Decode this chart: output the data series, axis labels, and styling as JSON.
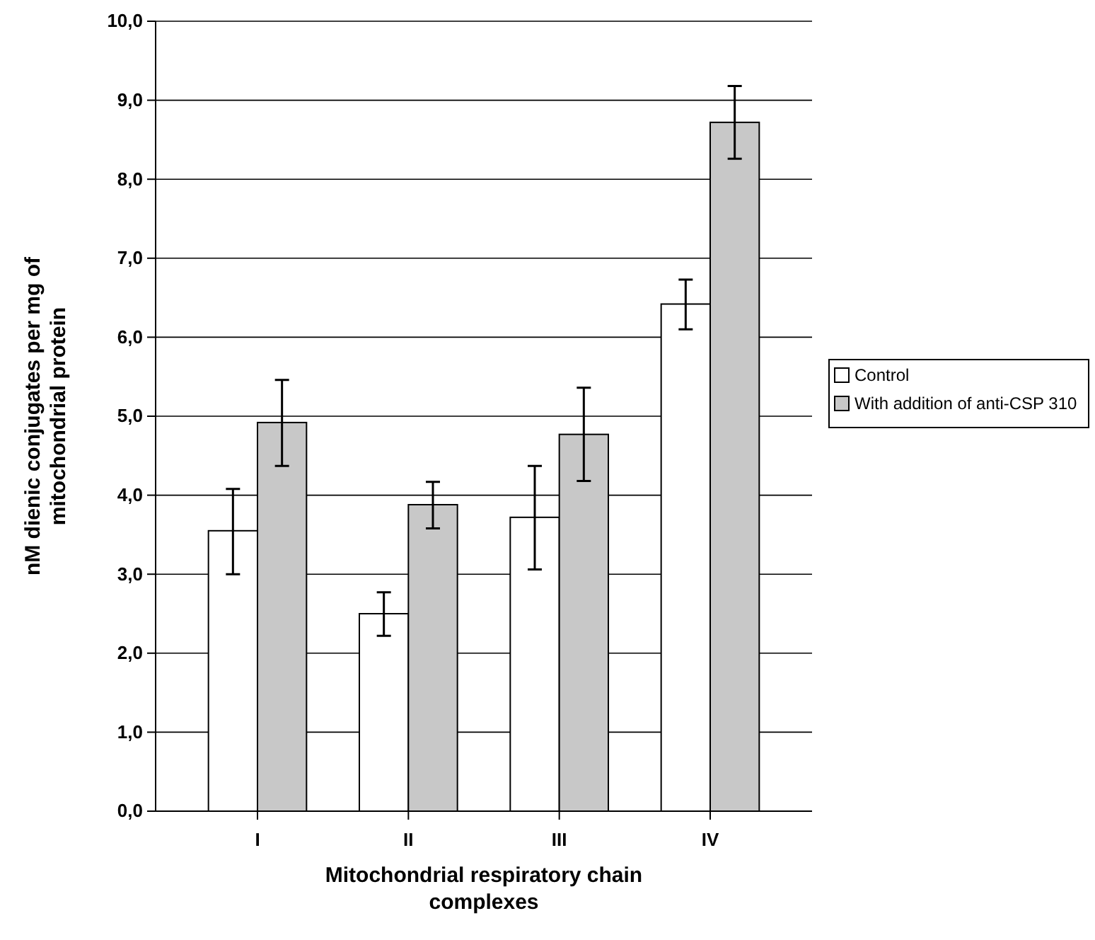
{
  "chart_data": {
    "type": "bar",
    "xlabel": "Mitochondrial respiratory chain complexes",
    "ylabel": "nM dienic conjugates per mg of mitochondrial protein",
    "categories": [
      "I",
      "II",
      "III",
      "IV"
    ],
    "series": [
      {
        "name": "Control",
        "color": "#ffffff",
        "values": [
          3.55,
          2.5,
          3.72,
          6.42
        ],
        "errors": [
          [
            3.0,
            4.08
          ],
          [
            2.22,
            2.77
          ],
          [
            3.06,
            4.37
          ],
          [
            6.1,
            6.73
          ]
        ]
      },
      {
        "name": "With addition of anti-CSP 310",
        "color": "#c8c8c8",
        "values": [
          4.92,
          3.88,
          4.77,
          8.72
        ],
        "errors": [
          [
            4.37,
            5.46
          ],
          [
            3.58,
            4.17
          ],
          [
            4.18,
            5.36
          ],
          [
            8.26,
            9.18
          ]
        ]
      }
    ],
    "ylim": [
      0,
      10
    ],
    "yticks": [
      {
        "value": 0,
        "label": "0,0"
      },
      {
        "value": 1,
        "label": "1,0"
      },
      {
        "value": 2,
        "label": "2,0"
      },
      {
        "value": 3,
        "label": "3,0"
      },
      {
        "value": 4,
        "label": "4,0"
      },
      {
        "value": 5,
        "label": "5,0"
      },
      {
        "value": 6,
        "label": "6,0"
      },
      {
        "value": 7,
        "label": "7,0"
      },
      {
        "value": 8,
        "label": "8,0"
      },
      {
        "value": 9,
        "label": "9,0"
      },
      {
        "value": 10,
        "label": "10,0"
      }
    ],
    "grid": "y",
    "legend": "right"
  }
}
